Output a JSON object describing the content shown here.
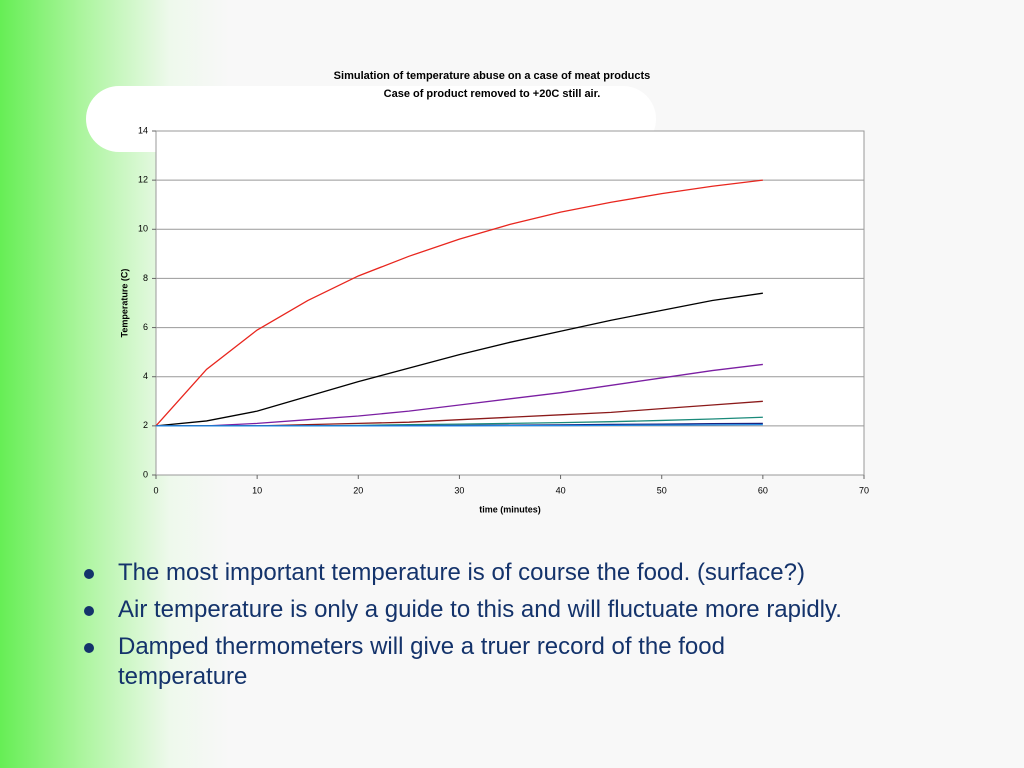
{
  "chart_data": {
    "type": "line",
    "title": "Simulation of temperature abuse on a case of meat products",
    "subtitle": "Case of product removed to +20C still air.",
    "x_label": "time (minutes)",
    "y_label": "Temperature (C)",
    "x": [
      0,
      5,
      10,
      15,
      20,
      25,
      30,
      35,
      40,
      45,
      50,
      55,
      60
    ],
    "series": [
      {
        "color": "#e8261e",
        "values": [
          2,
          4.3,
          5.9,
          7.1,
          8.1,
          8.9,
          9.6,
          10.2,
          10.7,
          11.1,
          11.45,
          11.75,
          12.0
        ]
      },
      {
        "color": "#000000",
        "values": [
          2,
          2.2,
          2.6,
          3.2,
          3.8,
          4.35,
          4.9,
          5.4,
          5.85,
          6.3,
          6.7,
          7.1,
          7.4
        ]
      },
      {
        "color": "#7b1fa2",
        "values": [
          2,
          2.0,
          2.1,
          2.25,
          2.4,
          2.6,
          2.85,
          3.1,
          3.35,
          3.65,
          3.95,
          4.25,
          4.5
        ]
      },
      {
        "color": "#8b1a1a",
        "values": [
          2,
          2,
          2.0,
          2.05,
          2.1,
          2.15,
          2.25,
          2.35,
          2.45,
          2.55,
          2.7,
          2.85,
          3.0
        ]
      },
      {
        "color": "#1a8a7a",
        "values": [
          2,
          2,
          2,
          2,
          2.02,
          2.05,
          2.07,
          2.1,
          2.13,
          2.17,
          2.22,
          2.28,
          2.35
        ]
      },
      {
        "color": "#1a237e",
        "values": [
          2,
          2,
          2,
          2,
          2,
          2.01,
          2.02,
          2.03,
          2.04,
          2.06,
          2.07,
          2.09,
          2.1
        ]
      },
      {
        "color": "#1e88e5",
        "values": [
          2,
          2,
          2,
          2,
          2,
          2,
          2,
          2.01,
          2.01,
          2.02,
          2.03,
          2.04,
          2.05
        ]
      }
    ],
    "xlim": [
      0,
      70
    ],
    "xticks": [
      0,
      10,
      20,
      30,
      40,
      50,
      60,
      70
    ],
    "ylim": [
      0,
      14
    ],
    "yticks": [
      0,
      2,
      4,
      6,
      8,
      10,
      12,
      14
    ],
    "grid": true
  },
  "bullets": [
    "The most important temperature is of course the food. (surface?)",
    "Air temperature is only a guide to this and will fluctuate more rapidly.",
    "Damped thermometers will give a truer record of the food temperature"
  ]
}
